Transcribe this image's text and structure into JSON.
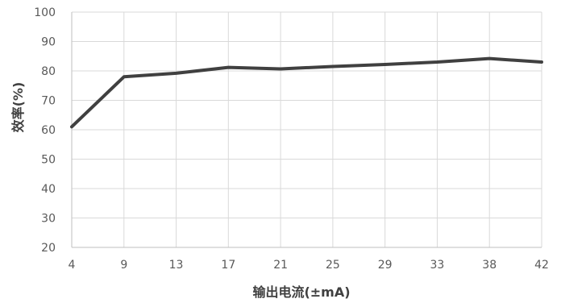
{
  "chart_data": {
    "type": "line",
    "title": "",
    "xlabel": "输出电流(±mA)",
    "ylabel": "效率(%)",
    "categories": [
      "4",
      "9",
      "13",
      "17",
      "21",
      "25",
      "29",
      "33",
      "38",
      "42"
    ],
    "series": [
      {
        "values": [
          61,
          78,
          79.2,
          81.2,
          80.7,
          81.5,
          82.2,
          83,
          84.2,
          83
        ]
      }
    ],
    "ylim": [
      20,
      100
    ],
    "yticks": [
      "20",
      "30",
      "40",
      "50",
      "60",
      "70",
      "80",
      "90",
      "100"
    ],
    "grid": true,
    "legend": "none",
    "colors": {
      "line": "#404040",
      "grid": "#d9d9d9",
      "axis": "#bfbfbf"
    }
  }
}
